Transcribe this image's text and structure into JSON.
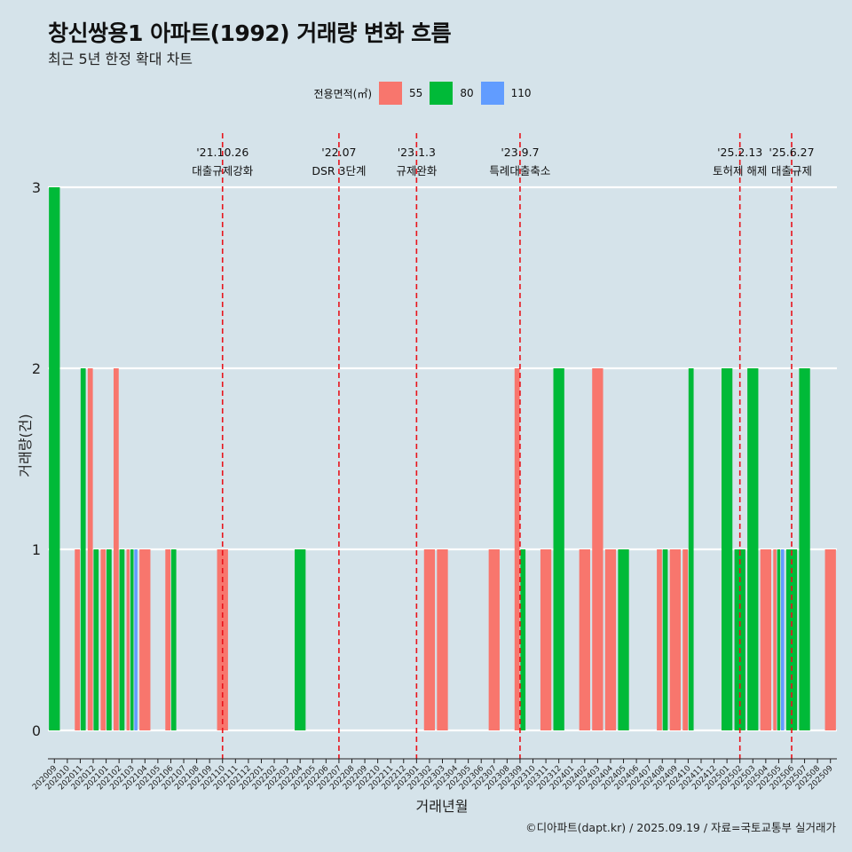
{
  "header": {
    "title": "창신쌍용1 아파트(1992) 거래량 변화 흐름",
    "subtitle": "최근 5년 한정 확대 차트"
  },
  "legend": {
    "title": "전용면적(㎡)",
    "items": [
      {
        "label": "55",
        "color": "#f8766d"
      },
      {
        "label": "80",
        "color": "#00ba38"
      },
      {
        "label": "110",
        "color": "#619cff"
      }
    ]
  },
  "caption": "©디아파트(dapt.kr) / 2025.09.19 / 자료=국토교통부 실거래가",
  "chart_data": {
    "type": "bar",
    "xlabel": "거래년월",
    "ylabel": "거래량(건)",
    "ylim": [
      0,
      3
    ],
    "yticks": [
      0,
      1,
      2,
      3
    ],
    "grid": true,
    "categories": [
      "202009",
      "202010",
      "202011",
      "202012",
      "202101",
      "202102",
      "202103",
      "202104",
      "202105",
      "202106",
      "202107",
      "202108",
      "202109",
      "202110",
      "202111",
      "202112",
      "202201",
      "202202",
      "202203",
      "202204",
      "202205",
      "202206",
      "202207",
      "202208",
      "202209",
      "202210",
      "202211",
      "202212",
      "202301",
      "202302",
      "202303",
      "202304",
      "202305",
      "202306",
      "202307",
      "202308",
      "202309",
      "202310",
      "202311",
      "202312",
      "202401",
      "202402",
      "202403",
      "202404",
      "202405",
      "202406",
      "202407",
      "202408",
      "202409",
      "202410",
      "202411",
      "202412",
      "202501",
      "202502",
      "202503",
      "202504",
      "202505",
      "202506",
      "202507",
      "202508",
      "202509"
    ],
    "series": [
      {
        "name": "55",
        "color": "#f8766d",
        "values": [
          0,
          0,
          1,
          2,
          1,
          2,
          1,
          1,
          0,
          1,
          0,
          0,
          0,
          1,
          0,
          0,
          0,
          0,
          0,
          0,
          0,
          0,
          0,
          0,
          0,
          0,
          0,
          0,
          0,
          1,
          1,
          0,
          0,
          0,
          1,
          0,
          2,
          0,
          1,
          0,
          0,
          1,
          2,
          1,
          0,
          0,
          0,
          1,
          1,
          1,
          0,
          0,
          0,
          0,
          0,
          1,
          1,
          0,
          0,
          0,
          1
        ]
      },
      {
        "name": "80",
        "color": "#00ba38",
        "values": [
          3,
          0,
          2,
          1,
          1,
          1,
          1,
          0,
          0,
          1,
          0,
          0,
          0,
          0,
          0,
          0,
          0,
          0,
          0,
          1,
          0,
          0,
          0,
          0,
          0,
          0,
          0,
          0,
          0,
          0,
          0,
          0,
          0,
          0,
          0,
          0,
          1,
          0,
          0,
          2,
          0,
          0,
          0,
          0,
          1,
          0,
          0,
          1,
          0,
          2,
          0,
          0,
          2,
          1,
          2,
          0,
          1,
          1,
          2,
          0,
          0
        ]
      },
      {
        "name": "110",
        "color": "#619cff",
        "values": [
          0,
          0,
          0,
          0,
          0,
          0,
          1,
          0,
          0,
          0,
          0,
          0,
          0,
          0,
          0,
          0,
          0,
          0,
          0,
          0,
          0,
          0,
          0,
          0,
          0,
          0,
          0,
          0,
          0,
          0,
          0,
          0,
          0,
          0,
          0,
          0,
          0,
          0,
          0,
          0,
          0,
          0,
          0,
          0,
          0,
          0,
          0,
          0,
          0,
          0,
          0,
          0,
          0,
          0,
          0,
          0,
          1,
          0,
          0,
          0,
          0
        ]
      }
    ],
    "events": [
      {
        "date": "'21.10.26",
        "label": "대출규제강화",
        "x_category": "202110"
      },
      {
        "date": "'22.07",
        "label": "DSR 3단계",
        "x_category": "202207"
      },
      {
        "date": "'23.1.3",
        "label": "규제완화",
        "x_category": "202301"
      },
      {
        "date": "'23.9.7",
        "label": "특례대출축소",
        "x_category": "202309"
      },
      {
        "date": "'25.2.13",
        "label": "토허제 해제",
        "x_category": "202502"
      },
      {
        "date": "'25.6.27",
        "label": "대출규제",
        "x_category": "202506"
      }
    ]
  }
}
